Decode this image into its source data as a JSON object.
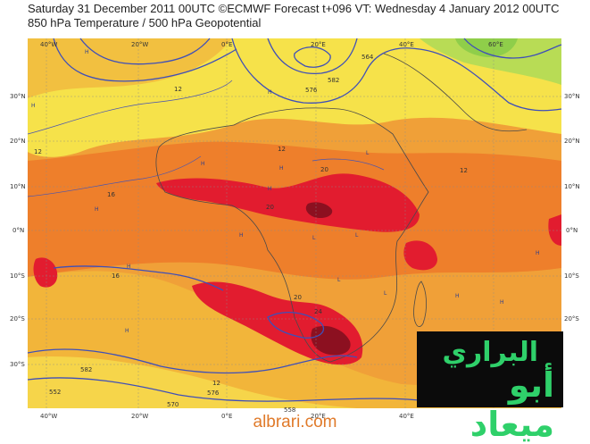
{
  "header": {
    "line1": "Saturday 31 December 2011 00UTC ©ECMWF Forecast t+096 VT: Wednesday 4 January 2012 00UTC",
    "line2": "850 hPa Temperature / 500 hPa Geopotential"
  },
  "axes": {
    "lon_labels": [
      "40°W",
      "20°W",
      "0°E",
      "20°E",
      "40°E",
      "60°E"
    ],
    "lat_labels": [
      "30°N",
      "20°N",
      "10°N",
      "0°N",
      "10°S",
      "20°S",
      "30°S"
    ]
  },
  "contour_labels": [
    "12",
    "12",
    "12",
    "12",
    "16",
    "16",
    "20",
    "20",
    "20",
    "24",
    "12",
    "576",
    "582",
    "564",
    "570",
    "558",
    "576",
    "582",
    "552"
  ],
  "colors": {
    "warm_yellow": "#f6e24a",
    "orange_light": "#f2b53a",
    "orange": "#ee7f2b",
    "red_orange": "#e8532b",
    "red": "#e21c2f",
    "dark_red": "#8c1020",
    "green": "#9ad64a",
    "contour": "#3f4fb8"
  },
  "logo": {
    "line1": "البراري",
    "line2": "أبو ميعاد"
  },
  "footer": "albrari.com"
}
